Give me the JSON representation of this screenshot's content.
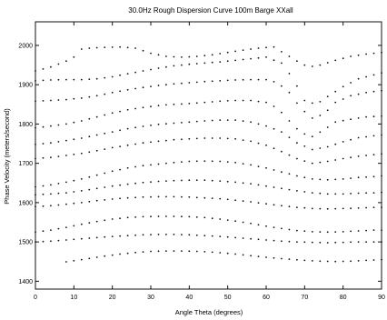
{
  "chart_data": {
    "type": "scatter",
    "title": "30.0Hz Rough Dispersion Curve   100m Barge XXall",
    "xlabel": "Angle Theta (degrees)",
    "ylabel": "Phase Velocity (meters/second)",
    "xlim": [
      0,
      90
    ],
    "ylim": [
      1380,
      2060
    ],
    "xticks": [
      "0",
      "10",
      "20",
      "30",
      "40",
      "50",
      "60",
      "70",
      "80",
      "90"
    ],
    "yticks": [
      "1400",
      "1500",
      "1600",
      "1700",
      "1800",
      "1900",
      "2000"
    ],
    "xtick_values": [
      0,
      10,
      20,
      30,
      40,
      50,
      60,
      70,
      80,
      90
    ],
    "ytick_values": [
      1400,
      1500,
      1600,
      1700,
      1800,
      1900,
      2000
    ],
    "grid": false,
    "marker_color": "#111111",
    "angle_step_deg": 2,
    "series": [
      {
        "x": [
          0,
          4,
          8,
          10,
          11.5,
          14,
          18,
          22,
          26,
          30,
          34,
          38,
          42,
          46,
          50,
          54,
          58,
          62,
          65,
          68,
          71,
          74,
          78,
          82,
          86,
          90
        ],
        "y": [
          1935,
          1945,
          1960,
          1970,
          1990,
          1993,
          1995,
          1996,
          1993,
          1980,
          1972,
          1970,
          1972,
          1976,
          1982,
          1988,
          1993,
          1996,
          1978,
          1960,
          1945,
          1950,
          1962,
          1972,
          1978,
          1982
        ]
      },
      {
        "x": [
          0,
          4,
          8,
          12,
          16,
          20,
          24,
          28,
          32,
          36,
          40,
          44,
          48,
          52,
          56,
          60,
          64,
          67,
          70,
          73,
          76,
          80,
          84,
          88,
          90
        ],
        "y": [
          1910,
          1912,
          1913,
          1913,
          1915,
          1920,
          1928,
          1935,
          1942,
          1948,
          1952,
          1955,
          1958,
          1962,
          1966,
          1970,
          1955,
          1915,
          1860,
          1850,
          1870,
          1895,
          1915,
          1925,
          1930
        ]
      },
      {
        "x": [
          0,
          4,
          8,
          12,
          16,
          20,
          24,
          28,
          32,
          36,
          40,
          44,
          48,
          52,
          56,
          60,
          63,
          66,
          69,
          72,
          75,
          78,
          82,
          86,
          90
        ],
        "y": [
          1858,
          1860,
          1862,
          1866,
          1872,
          1880,
          1887,
          1893,
          1898,
          1902,
          1905,
          1908,
          1910,
          1912,
          1913,
          1913,
          1905,
          1880,
          1840,
          1815,
          1825,
          1855,
          1872,
          1880,
          1885
        ]
      },
      {
        "x": [
          0,
          4,
          8,
          12,
          16,
          20,
          24,
          28,
          32,
          36,
          40,
          44,
          48,
          52,
          56,
          60,
          63,
          66,
          69,
          72,
          75,
          78,
          82,
          86,
          90
        ],
        "y": [
          1790,
          1795,
          1800,
          1808,
          1818,
          1828,
          1836,
          1842,
          1847,
          1850,
          1852,
          1855,
          1858,
          1860,
          1860,
          1855,
          1840,
          1808,
          1778,
          1768,
          1785,
          1805,
          1812,
          1818,
          1820
        ]
      },
      {
        "x": [
          0,
          4,
          8,
          12,
          16,
          20,
          24,
          28,
          32,
          36,
          40,
          44,
          48,
          52,
          56,
          60,
          64,
          68,
          72,
          76,
          80,
          84,
          88,
          90
        ],
        "y": [
          1748,
          1752,
          1758,
          1764,
          1772,
          1780,
          1788,
          1794,
          1799,
          1802,
          1805,
          1808,
          1810,
          1810,
          1805,
          1795,
          1780,
          1752,
          1735,
          1742,
          1755,
          1765,
          1770,
          1772
        ]
      },
      {
        "x": [
          0,
          4,
          8,
          12,
          16,
          20,
          24,
          28,
          32,
          36,
          40,
          44,
          48,
          52,
          56,
          60,
          64,
          68,
          72,
          76,
          80,
          84,
          88,
          90
        ],
        "y": [
          1712,
          1715,
          1720,
          1725,
          1732,
          1740,
          1746,
          1752,
          1756,
          1760,
          1762,
          1764,
          1764,
          1762,
          1756,
          1746,
          1730,
          1712,
          1700,
          1705,
          1712,
          1718,
          1722,
          1724
        ]
      },
      {
        "x": [
          0,
          4,
          8,
          12,
          16,
          20,
          24,
          28,
          32,
          36,
          40,
          44,
          48,
          52,
          56,
          60,
          64,
          68,
          72,
          76,
          80,
          84,
          88,
          90
        ],
        "y": [
          1640,
          1645,
          1652,
          1660,
          1670,
          1680,
          1688,
          1694,
          1698,
          1702,
          1705,
          1706,
          1705,
          1702,
          1696,
          1688,
          1678,
          1668,
          1660,
          1658,
          1660,
          1664,
          1666,
          1668
        ]
      },
      {
        "x": [
          0,
          4,
          8,
          12,
          16,
          20,
          24,
          28,
          32,
          36,
          40,
          44,
          48,
          52,
          56,
          60,
          64,
          68,
          72,
          76,
          80,
          84,
          88,
          90
        ],
        "y": [
          1620,
          1622,
          1625,
          1630,
          1636,
          1642,
          1647,
          1651,
          1654,
          1656,
          1657,
          1657,
          1655,
          1652,
          1648,
          1642,
          1636,
          1630,
          1625,
          1622,
          1622,
          1624,
          1625,
          1626
        ]
      },
      {
        "x": [
          0,
          4,
          8,
          12,
          16,
          20,
          24,
          28,
          32,
          36,
          40,
          44,
          48,
          52,
          56,
          60,
          64,
          68,
          72,
          76,
          80,
          84,
          88,
          90
        ],
        "y": [
          1590,
          1592,
          1596,
          1600,
          1605,
          1609,
          1612,
          1614,
          1615,
          1615,
          1614,
          1612,
          1610,
          1606,
          1602,
          1597,
          1592,
          1588,
          1585,
          1584,
          1585,
          1586,
          1588,
          1588
        ]
      },
      {
        "x": [
          0,
          4,
          8,
          12,
          16,
          20,
          24,
          28,
          32,
          36,
          40,
          44,
          48,
          52,
          56,
          60,
          64,
          68,
          72,
          76,
          80,
          84,
          88,
          90
        ],
        "y": [
          1525,
          1530,
          1537,
          1545,
          1552,
          1558,
          1562,
          1564,
          1565,
          1565,
          1564,
          1562,
          1558,
          1553,
          1547,
          1540,
          1534,
          1529,
          1526,
          1525,
          1526,
          1528,
          1530,
          1530
        ]
      },
      {
        "x": [
          0,
          4,
          8,
          12,
          16,
          20,
          24,
          28,
          32,
          36,
          40,
          44,
          48,
          52,
          56,
          60,
          64,
          68,
          72,
          76,
          80,
          84,
          88,
          90
        ],
        "y": [
          1500,
          1502,
          1505,
          1508,
          1511,
          1514,
          1516,
          1518,
          1519,
          1519,
          1518,
          1516,
          1514,
          1511,
          1508,
          1505,
          1502,
          1500,
          1499,
          1498,
          1499,
          1500,
          1500,
          1500
        ]
      },
      {
        "x": [
          7,
          10,
          14,
          18,
          22,
          26,
          30,
          34,
          38,
          42,
          46,
          50,
          54,
          58,
          62,
          66,
          70,
          74,
          78,
          82,
          86,
          90
        ],
        "y": [
          1448,
          1452,
          1458,
          1464,
          1469,
          1473,
          1476,
          1477,
          1477,
          1476,
          1474,
          1471,
          1467,
          1463,
          1459,
          1456,
          1453,
          1451,
          1450,
          1451,
          1453,
          1455
        ]
      }
    ]
  }
}
